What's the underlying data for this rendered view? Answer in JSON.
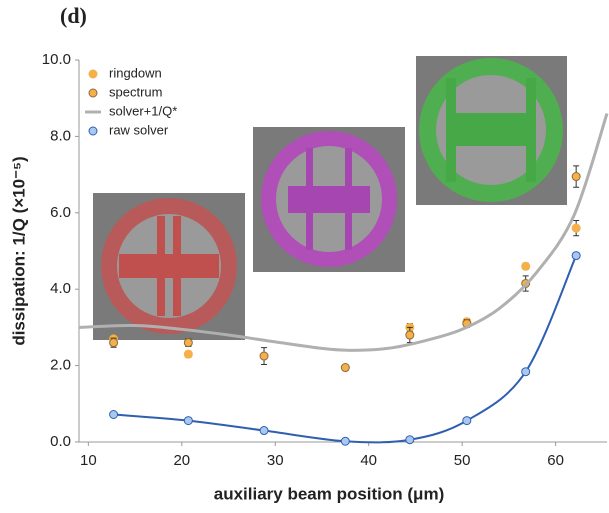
{
  "chart_data": {
    "type": "scatter",
    "title": "(d)",
    "xlabel": "auxiliary beam position (μm)",
    "ylabel": "dissipation: 1/Q (×10⁻⁵)",
    "xlim": [
      9,
      65.5
    ],
    "xticks": [
      10,
      20,
      30,
      40,
      50,
      60
    ],
    "ylim": [
      0,
      10
    ],
    "yticks": [
      {
        "value": 0,
        "label": "0.0"
      },
      {
        "value": 2,
        "label": "2.0"
      },
      {
        "value": 4,
        "label": "4.0"
      },
      {
        "value": 6,
        "label": "6.0"
      },
      {
        "value": 8,
        "label": "8.0"
      },
      {
        "value": 10,
        "label": "10.0"
      }
    ],
    "legend": "upper left",
    "series": [
      {
        "name": "ringdown",
        "style": "markers",
        "color": "#f5b04a",
        "edgecolor": "#f5b04a",
        "x": [
          12.7,
          20.7,
          44.4,
          50.5,
          56.8,
          62.2
        ],
        "values": [
          2.7,
          2.3,
          3.0,
          3.15,
          4.6,
          5.6
        ],
        "errors": [
          0.08,
          0.08,
          0.1,
          0.08,
          0.08,
          0.2
        ]
      },
      {
        "name": "spectrum",
        "style": "markers",
        "color": "#f5b04a",
        "edgecolor": "#8a6a3a",
        "x": [
          12.7,
          20.7,
          28.8,
          37.5,
          44.4,
          50.5,
          56.8,
          62.2
        ],
        "values": [
          2.6,
          2.6,
          2.25,
          1.95,
          2.8,
          3.1,
          4.15,
          6.95
        ],
        "errors": [
          0.12,
          0.1,
          0.22,
          0.05,
          0.2,
          0.1,
          0.2,
          0.28
        ]
      },
      {
        "name": "solver+1/Q*",
        "style": "line",
        "color": "#b0b0b0",
        "x": [
          9,
          15,
          20,
          25,
          30,
          35,
          38,
          42,
          46,
          50,
          54,
          58,
          62,
          65.5
        ],
        "values": [
          3.0,
          3.05,
          2.95,
          2.8,
          2.62,
          2.45,
          2.4,
          2.45,
          2.65,
          2.95,
          3.5,
          4.45,
          5.95,
          8.6
        ]
      },
      {
        "name": "raw solver",
        "style": "markers+line",
        "color": "#a9c8ef",
        "edgecolor": "#2f5fb0",
        "x": [
          12.7,
          20.7,
          28.8,
          37.5,
          44.4,
          50.5,
          56.8,
          62.2
        ],
        "values": [
          0.72,
          0.56,
          0.3,
          0.02,
          0.06,
          0.56,
          1.84,
          4.88
        ]
      }
    ]
  }
}
